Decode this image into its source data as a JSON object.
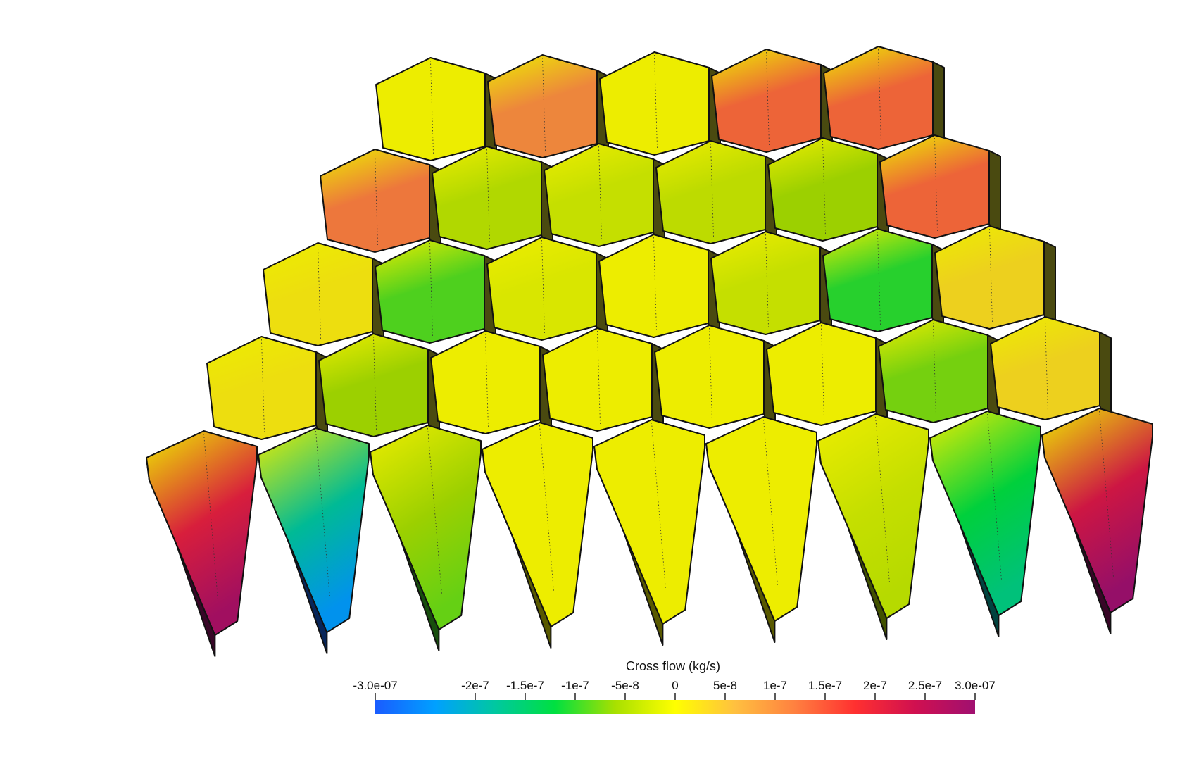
{
  "render": {
    "field_name": "Cross flow (kg/s)",
    "background": "#ffffff"
  },
  "colorbar": {
    "title": "Cross flow (kg/s)",
    "min_label": "-3.0e-07",
    "max_label": "3.0e-07",
    "range": [
      -3e-07,
      3e-07
    ],
    "ticks": [
      {
        "value": -2e-07,
        "label": "-2e-7"
      },
      {
        "value": -1.5e-07,
        "label": "-1.5e-7"
      },
      {
        "value": -1e-07,
        "label": "-1e-7"
      },
      {
        "value": -5e-08,
        "label": "-5e-8"
      },
      {
        "value": 0,
        "label": "0"
      },
      {
        "value": 5e-08,
        "label": "5e-8"
      },
      {
        "value": 1e-07,
        "label": "1e-7"
      },
      {
        "value": 1.5e-07,
        "label": "1.5e-7"
      },
      {
        "value": 2e-07,
        "label": "2e-7"
      },
      {
        "value": 2.5e-07,
        "label": "2.5e-7"
      }
    ],
    "colormap": [
      "#1a5cff",
      "#00a0ff",
      "#00c8a0",
      "#00e040",
      "#a8e000",
      "#ffff00",
      "#ffc040",
      "#ff8040",
      "#ff3030",
      "#d01050",
      "#a01070"
    ]
  },
  "mesh": {
    "rows": [
      {
        "cells": [
          0.0,
          0.35,
          0.0,
          0.45,
          0.45
        ]
      },
      {
        "cells": [
          0.4,
          -0.15,
          -0.1,
          -0.12,
          -0.2,
          0.45
        ]
      },
      {
        "cells": [
          0.05,
          -0.3,
          -0.05,
          0.0,
          -0.1,
          -0.35,
          0.1
        ]
      },
      {
        "cells": [
          0.05,
          -0.2,
          0.0,
          0.0,
          0.0,
          0.0,
          -0.25,
          0.1
        ]
      },
      {
        "cells": [
          0.7,
          -0.6,
          -0.2,
          0.0,
          0.0,
          0.0,
          -0.1,
          -0.4,
          0.75
        ]
      }
    ]
  }
}
